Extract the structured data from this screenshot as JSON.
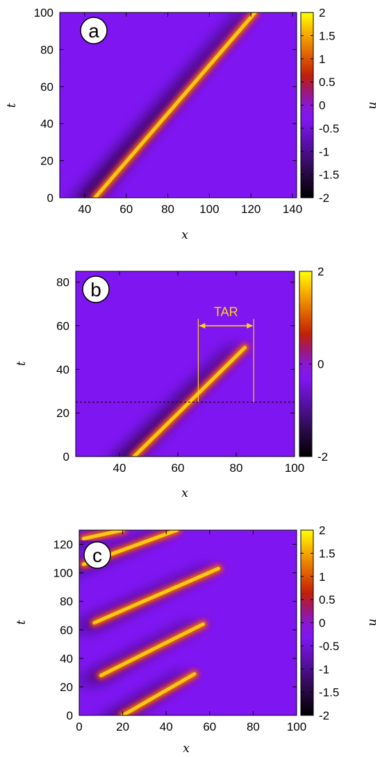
{
  "chart_data": [
    {
      "type": "heatmap",
      "panel_label": "a",
      "xlabel": "x",
      "ylabel": "t",
      "colorbar_label": "u",
      "xlim": [
        28,
        142
      ],
      "ylim": [
        0,
        100
      ],
      "xticks": [
        "40",
        "60",
        "80",
        "100",
        "120",
        "140"
      ],
      "yticks": [
        "0",
        "20",
        "40",
        "60",
        "80",
        "100"
      ],
      "clim": [
        -2,
        2
      ],
      "colorbar_ticks": [
        "2",
        "1.5",
        "1",
        "0.5",
        "0",
        "-0.5",
        "-1",
        "-1.5",
        "-2"
      ],
      "features": [
        {
          "kind": "pulse",
          "x_start": 45,
          "t_start": 0,
          "x_end": 122,
          "t_end": 100
        }
      ]
    },
    {
      "type": "heatmap",
      "panel_label": "b",
      "xlabel": "x",
      "ylabel": "t",
      "colorbar_label": "",
      "xlim": [
        25,
        100
      ],
      "ylim": [
        0,
        85
      ],
      "xticks": [
        "40",
        "60",
        "80",
        "100"
      ],
      "yticks": [
        "0",
        "20",
        "40",
        "60",
        "80"
      ],
      "clim": [
        -2,
        2
      ],
      "colorbar_ticks": [
        "2",
        "0",
        "-2"
      ],
      "features": [
        {
          "kind": "pulse",
          "x_start": 45,
          "t_start": 0,
          "x_end": 83,
          "t_end": 50
        }
      ],
      "annotations": {
        "dashed_line_t": 25,
        "vertical_lines_x": [
          67,
          86
        ],
        "arrow_t": 60,
        "arrow_label": "TAR"
      }
    },
    {
      "type": "heatmap",
      "panel_label": "c",
      "xlabel": "x",
      "ylabel": "t",
      "colorbar_label": "u",
      "xlim": [
        0,
        100
      ],
      "ylim": [
        0,
        130
      ],
      "xticks": [
        "0",
        "20",
        "40",
        "60",
        "80",
        "100"
      ],
      "yticks": [
        "0",
        "20",
        "40",
        "60",
        "80",
        "100",
        "120"
      ],
      "clim": [
        -2,
        2
      ],
      "colorbar_ticks": [
        "2",
        "1.5",
        "1",
        "0.5",
        "0",
        "-0.5",
        "-1",
        "-1.5",
        "-2"
      ],
      "features": [
        {
          "kind": "pulse",
          "x_start": 20,
          "t_start": 0,
          "x_end": 53,
          "t_end": 29
        },
        {
          "kind": "pulse",
          "x_start": 10,
          "t_start": 28,
          "x_end": 57,
          "t_end": 64
        },
        {
          "kind": "pulse",
          "x_start": 7,
          "t_start": 65,
          "x_end": 64,
          "t_end": 103
        },
        {
          "kind": "pulse",
          "x_start": 2,
          "t_start": 106,
          "x_end": 45,
          "t_end": 130
        },
        {
          "kind": "pulse",
          "x_start": 2,
          "t_start": 124,
          "x_end": 20,
          "t_end": 130
        }
      ]
    }
  ]
}
